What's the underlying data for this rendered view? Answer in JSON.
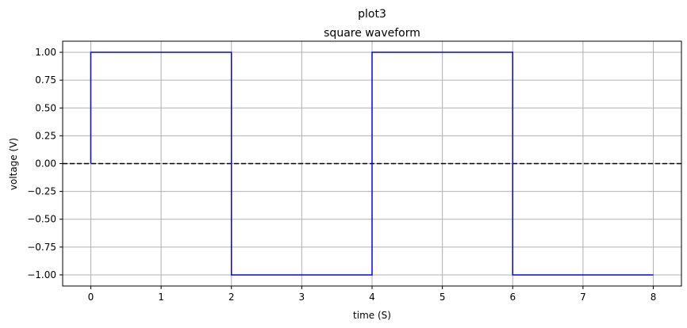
{
  "chart_data": {
    "type": "line",
    "title": "plot3",
    "subtitle": "square waveform",
    "xlabel": "time (S)",
    "ylabel": "voltage (V)",
    "xlim": [
      -0.4,
      8.4
    ],
    "ylim": [
      -1.1,
      1.1
    ],
    "xticks": [
      0,
      1,
      2,
      3,
      4,
      5,
      6,
      7,
      8
    ],
    "xtick_labels": [
      "0",
      "1",
      "2",
      "3",
      "4",
      "5",
      "6",
      "7",
      "8"
    ],
    "yticks": [
      1.0,
      0.75,
      0.5,
      0.25,
      0.0,
      -0.25,
      -0.5,
      -0.75,
      -1.0
    ],
    "ytick_labels": [
      "1.00",
      "0.75",
      "0.50",
      "0.25",
      "0.00",
      "−0.25",
      "−0.50",
      "−0.75",
      "−1.00"
    ],
    "grid": true,
    "series": [
      {
        "color": "#0000ff",
        "style": "solid",
        "x": [
          0,
          0,
          2,
          2,
          4,
          4,
          6,
          6,
          8
        ],
        "y": [
          0,
          1,
          1,
          -1,
          -1,
          1,
          1,
          -1,
          -1
        ]
      }
    ],
    "reference_lines": [
      {
        "orientation": "horizontal",
        "y": 0,
        "color": "#000000",
        "style": "dashed"
      }
    ]
  }
}
